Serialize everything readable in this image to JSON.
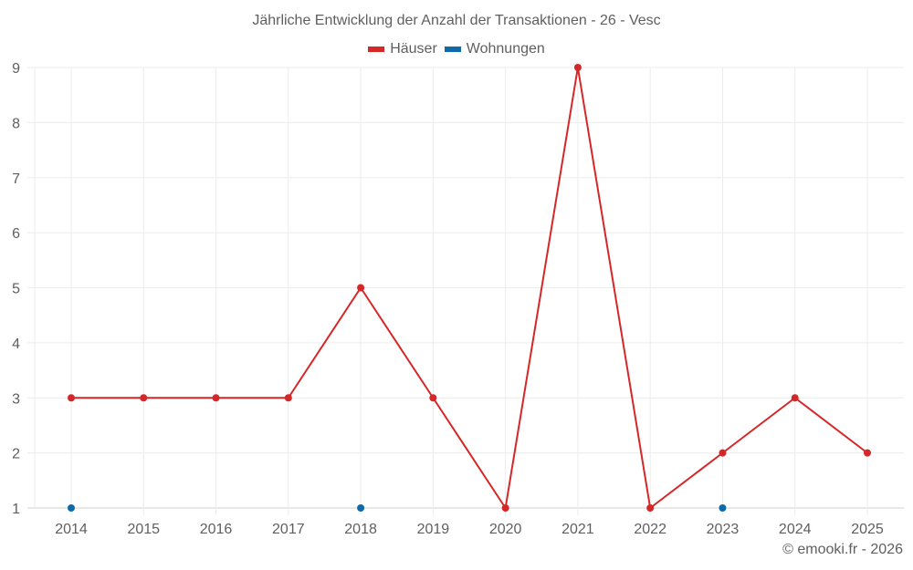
{
  "chart_data": {
    "type": "line",
    "title": "Jährliche Entwicklung der Anzahl der Transaktionen - 26 - Vesc",
    "xlabel": "",
    "ylabel": "",
    "categories": [
      "2014",
      "2015",
      "2016",
      "2017",
      "2018",
      "2019",
      "2020",
      "2021",
      "2022",
      "2023",
      "2024",
      "2025"
    ],
    "series": [
      {
        "name": "Häuser",
        "color": "#d62728",
        "values": [
          3,
          3,
          3,
          3,
          5,
          3,
          1,
          9,
          1,
          2,
          3,
          2
        ],
        "line": true
      },
      {
        "name": "Wohnungen",
        "color": "#0e6aa8",
        "values": [
          1,
          null,
          null,
          null,
          1,
          null,
          null,
          null,
          null,
          1,
          null,
          null
        ],
        "line": false
      }
    ],
    "ylim": [
      1,
      9
    ],
    "yticks": [
      1,
      2,
      3,
      4,
      5,
      6,
      7,
      8,
      9
    ],
    "grid": true,
    "legend_position": "top"
  },
  "footer": "© emooki.fr - 2026"
}
